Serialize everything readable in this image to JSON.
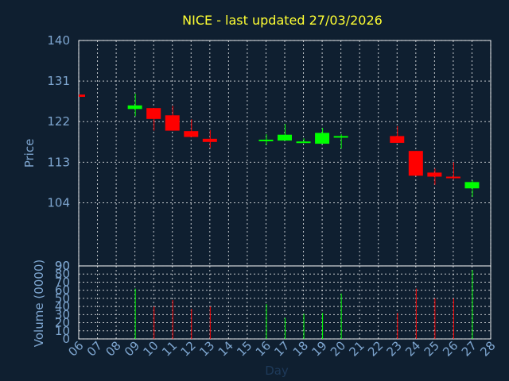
{
  "chart_data": {
    "type": "candlestick",
    "title": "NICE - last updated 27/03/2026",
    "xlabel": "Day",
    "x_ticks": [
      "06",
      "07",
      "08",
      "09",
      "10",
      "11",
      "12",
      "13",
      "14",
      "15",
      "16",
      "17",
      "18",
      "19",
      "20",
      "21",
      "22",
      "23",
      "24",
      "25",
      "26",
      "27",
      "28"
    ],
    "grid": true,
    "colors": {
      "up": "#00ff00",
      "down": "#ff0000",
      "title": "#ffff33",
      "text": "#7ea6d0",
      "background": "#0f1f30"
    },
    "price_panel": {
      "ylabel": "Price",
      "ylim": [
        90,
        140
      ],
      "y_ticks": [
        "140",
        "131",
        "122",
        "113",
        "104",
        "90"
      ],
      "y_tick_values": [
        140,
        131,
        122,
        113,
        104,
        90
      ]
    },
    "volume_panel": {
      "ylabel": "Volume (0000)",
      "ylim": [
        0,
        90
      ],
      "y_ticks": [
        "90",
        "80",
        "70",
        "60",
        "50",
        "40",
        "30",
        "20",
        "10",
        "0"
      ],
      "y_tick_values": [
        90,
        80,
        70,
        60,
        50,
        40,
        30,
        20,
        10,
        0
      ]
    },
    "candles": [
      {
        "day": "06",
        "open": 128.0,
        "high": 128.0,
        "low": 127.5,
        "close": 127.5,
        "volume": null
      },
      {
        "day": "09",
        "open": 124.8,
        "high": 128.2,
        "low": 123.2,
        "close": 125.6,
        "volume": 62
      },
      {
        "day": "10",
        "open": 125.0,
        "high": 125.0,
        "low": 120.0,
        "close": 122.6,
        "volume": 40
      },
      {
        "day": "11",
        "open": 123.4,
        "high": 125.5,
        "low": 120.0,
        "close": 120.0,
        "volume": 48
      },
      {
        "day": "12",
        "open": 119.9,
        "high": 122.5,
        "low": 118.6,
        "close": 118.6,
        "volume": 37
      },
      {
        "day": "13",
        "open": 118.2,
        "high": 120.1,
        "low": 116.2,
        "close": 117.5,
        "volume": 40
      },
      {
        "day": "16",
        "open": 117.8,
        "high": 119.2,
        "low": 116.8,
        "close": 118.0,
        "volume": 43
      },
      {
        "day": "17",
        "open": 117.8,
        "high": 121.5,
        "low": 117.8,
        "close": 119.1,
        "volume": 26
      },
      {
        "day": "18",
        "open": 117.3,
        "high": 118.3,
        "low": 117.3,
        "close": 117.6,
        "volume": 31
      },
      {
        "day": "19",
        "open": 117.1,
        "high": 120.6,
        "low": 117.1,
        "close": 119.5,
        "volume": 32
      },
      {
        "day": "20",
        "open": 118.5,
        "high": 119.2,
        "low": 116.0,
        "close": 118.8,
        "volume": 56
      },
      {
        "day": "23",
        "open": 118.8,
        "high": 121.0,
        "low": 117.3,
        "close": 117.3,
        "volume": 32
      },
      {
        "day": "24",
        "open": 115.5,
        "high": 115.5,
        "low": 110.0,
        "close": 110.0,
        "volume": 62
      },
      {
        "day": "25",
        "open": 110.7,
        "high": 111.6,
        "low": 108.0,
        "close": 109.8,
        "volume": 50
      },
      {
        "day": "26",
        "open": 109.8,
        "high": 113.0,
        "low": 109.2,
        "close": 109.5,
        "volume": 50
      },
      {
        "day": "27",
        "open": 107.2,
        "high": 109.0,
        "low": 105.3,
        "close": 108.6,
        "volume": 85
      }
    ]
  }
}
